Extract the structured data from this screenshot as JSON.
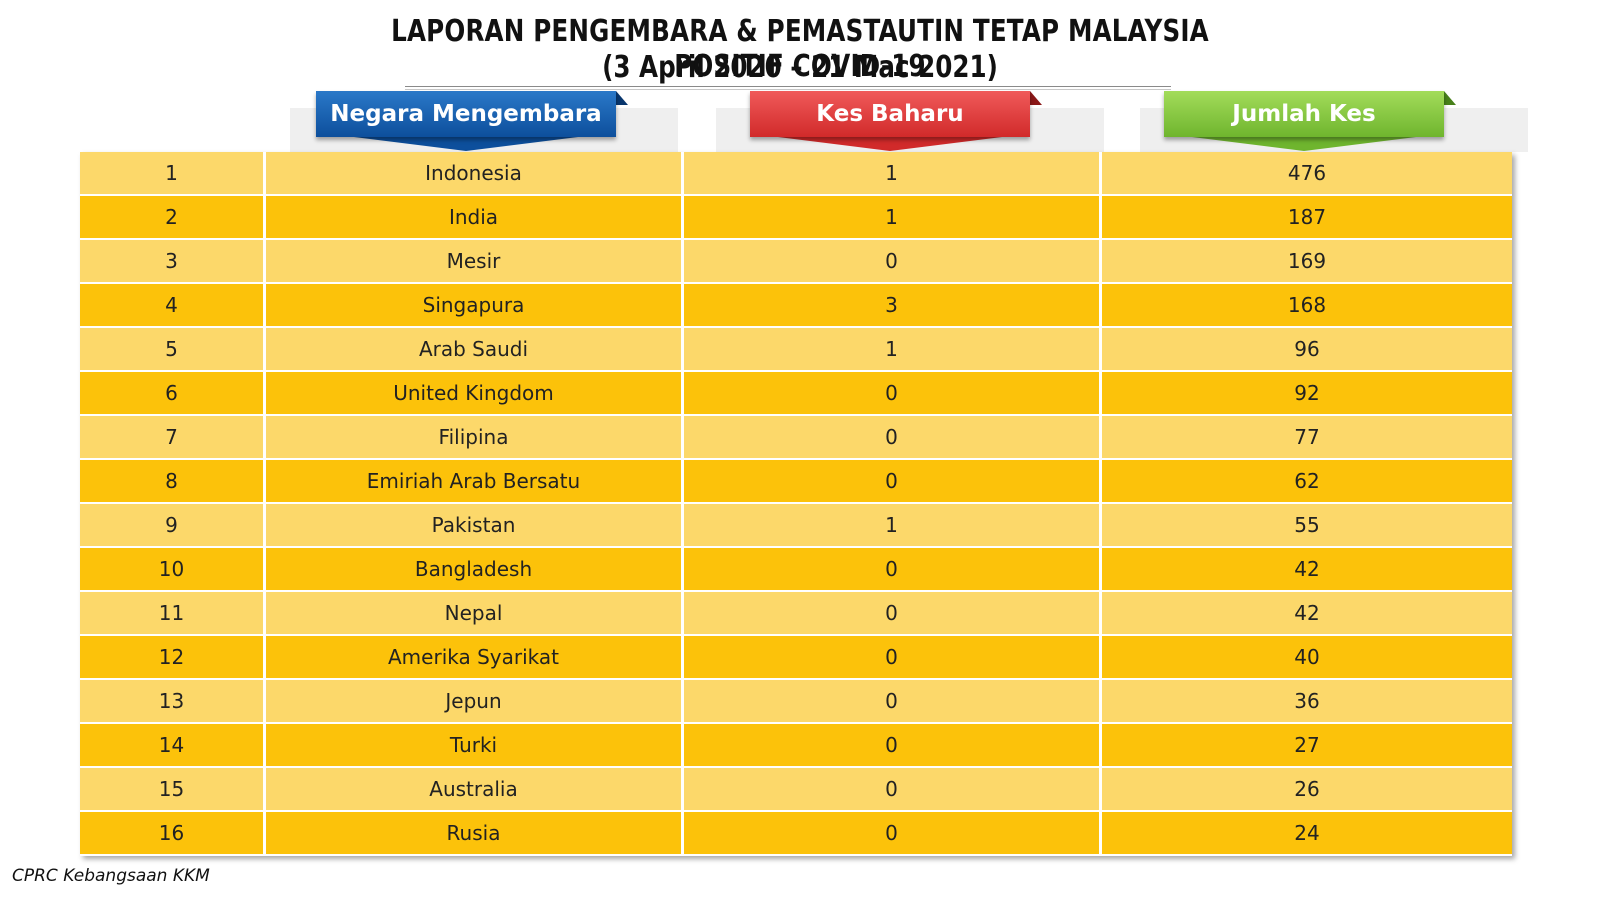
{
  "title_line1": "LAPORAN PENGEMBARA & PEMASTAUTIN TETAP MALAYSIA POSITIF COVID-19",
  "title_line2": "(3 April 2020 – 21 Mac 2021)",
  "headers": {
    "country": "Negara Mengembara",
    "new_cases": "Kes Baharu",
    "total_cases": "Jumlah Kes"
  },
  "colors": {
    "blue": "#0d4f9c",
    "red": "#d12a2a",
    "green": "#6fb52e",
    "row_light": "#fcd86a",
    "row_dark": "#fcc20a"
  },
  "rows": [
    {
      "no": "1",
      "country": "Indonesia",
      "new": "1",
      "total": "476"
    },
    {
      "no": "2",
      "country": "India",
      "new": "1",
      "total": "187"
    },
    {
      "no": "3",
      "country": "Mesir",
      "new": "0",
      "total": "169"
    },
    {
      "no": "4",
      "country": "Singapura",
      "new": "3",
      "total": "168"
    },
    {
      "no": "5",
      "country": "Arab Saudi",
      "new": "1",
      "total": "96"
    },
    {
      "no": "6",
      "country": "United Kingdom",
      "new": "0",
      "total": "92"
    },
    {
      "no": "7",
      "country": "Filipina",
      "new": "0",
      "total": "77"
    },
    {
      "no": "8",
      "country": "Emiriah Arab Bersatu",
      "new": "0",
      "total": "62"
    },
    {
      "no": "9",
      "country": "Pakistan",
      "new": "1",
      "total": "55"
    },
    {
      "no": "10",
      "country": "Bangladesh",
      "new": "0",
      "total": "42"
    },
    {
      "no": "11",
      "country": "Nepal",
      "new": "0",
      "total": "42"
    },
    {
      "no": "12",
      "country": "Amerika Syarikat",
      "new": "0",
      "total": "40"
    },
    {
      "no": "13",
      "country": "Jepun",
      "new": "0",
      "total": "36"
    },
    {
      "no": "14",
      "country": "Turki",
      "new": "0",
      "total": "27"
    },
    {
      "no": "15",
      "country": "Australia",
      "new": "0",
      "total": "26"
    },
    {
      "no": "16",
      "country": "Rusia",
      "new": "0",
      "total": "24"
    }
  ],
  "footer": "CPRC Kebangsaan KKM"
}
